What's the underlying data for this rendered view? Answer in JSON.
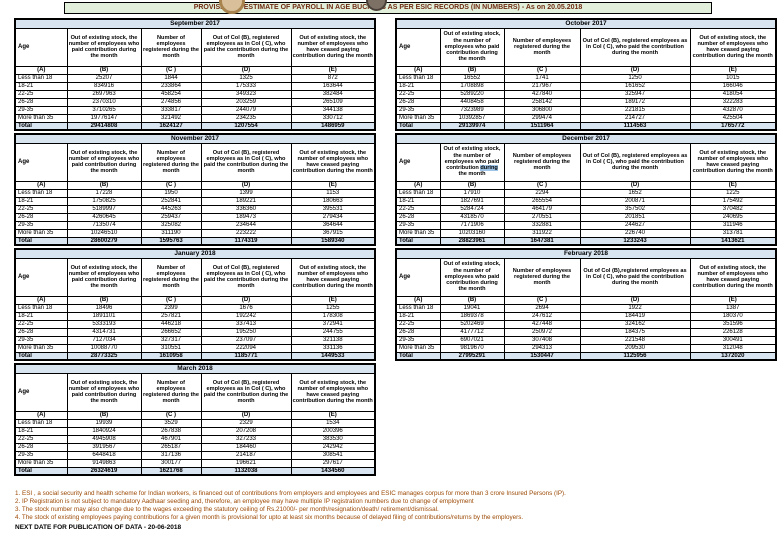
{
  "title": "PROVISIONAL ESTIMATE OF PAYROLL IN AGE BUCKETS AS PER ESIC RECORDS (IN NUMBERS) - As on 20.05.2018",
  "colors": {
    "title_band_bg": "#e2efda",
    "title_text": "#6f2c13",
    "month_band_bg": "#d9e4f1",
    "total_row_bg": "#d9e4f1",
    "notes_text": "#9c4a06",
    "selection_highlight": "#9dc3e6"
  },
  "headers": {
    "age": "Age",
    "col_b": "Out of existing stock, the number of employees who paid contribution during the month",
    "col_b_highlight_parts": {
      "before": "Out of existing stock, the number of employees who paid contribution ",
      "highlight": "during",
      "after": " the month"
    },
    "col_c": "Number of employees registered during the month",
    "col_d": "Out of Col (B), registered employees as in Col ( C), who paid the contribution during the month",
    "col_d_feb": "Out of Col (B),registered employees as in Col ( C), who paid the contribution during the month",
    "col_e": "Out of existing stock, the number of  employees  who have ceased paying contribution during the month"
  },
  "column_letters": [
    "(A)",
    "(B)",
    "(C )",
    "(D)",
    "(E)"
  ],
  "tables": [
    {
      "month": "September 2017",
      "rows": [
        [
          "Less than 18",
          "25207",
          "1844",
          "1325",
          "872"
        ],
        [
          "18-21",
          "834916",
          "233864",
          "175333",
          "163644"
        ],
        [
          "22-25",
          "2697963",
          "458254",
          "349323",
          "382484"
        ],
        [
          "26-28",
          "2370310",
          "274856",
          "203259",
          "265109"
        ],
        [
          "29-35",
          "3710265",
          "333817",
          "244079",
          "344138"
        ],
        [
          "More than 35",
          "19776147",
          "321492",
          "234235",
          "330712"
        ],
        [
          "Total",
          "29414808",
          "1624127",
          "1207554",
          "1486959"
        ]
      ]
    },
    {
      "month": "October 2017",
      "rows": [
        [
          "Less than 18",
          "16552",
          "1741",
          "1250",
          "1015"
        ],
        [
          "18-21",
          "1708898",
          "217967",
          "161652",
          "166046"
        ],
        [
          "22-25",
          "5289220",
          "427840",
          "325947",
          "418054"
        ],
        [
          "26-28",
          "4408458",
          "258142",
          "189172",
          "322283"
        ],
        [
          "29-35",
          "7323989",
          "306800",
          "221815",
          "432870"
        ],
        [
          "More than 35",
          "10392857",
          "299474",
          "214727",
          "425504"
        ],
        [
          "Total",
          "29139974",
          "1511964",
          "1114563",
          "1765772"
        ]
      ]
    },
    {
      "month": "November 2017",
      "rows": [
        [
          "Less than 18",
          "17228",
          "1950",
          "1399",
          "1153"
        ],
        [
          "18-21",
          "1750825",
          "252841",
          "189221",
          "180663"
        ],
        [
          "22-25",
          "5189997",
          "445263",
          "336360",
          "395531"
        ],
        [
          "26-28",
          "4260645",
          "259437",
          "189473",
          "279434"
        ],
        [
          "29-35",
          "7135074",
          "325082",
          "234644",
          "364644"
        ],
        [
          "More than 35",
          "10246510",
          "311190",
          "223222",
          "367915"
        ],
        [
          "Total",
          "28600279",
          "1595763",
          "1174319",
          "1589340"
        ]
      ]
    },
    {
      "month": "December 2017",
      "b_highlight": true,
      "rows": [
        [
          "Less than 18",
          "17910",
          "2294",
          "1652",
          "1225"
        ],
        [
          "18-21",
          "1827691",
          "265554",
          "200871",
          "175492"
        ],
        [
          "22-25",
          "5284724",
          "464179",
          "357502",
          "370482"
        ],
        [
          "26-28",
          "4318570",
          "270551",
          "201851",
          "240695"
        ],
        [
          "29-35",
          "7171906",
          "332881",
          "244627",
          "311946"
        ],
        [
          "More than 35",
          "10203160",
          "311922",
          "226740",
          "313781"
        ],
        [
          "Total",
          "28823961",
          "1647381",
          "1233243",
          "1413621"
        ]
      ]
    },
    {
      "month": "January 2018",
      "rows": [
        [
          "Less than 18",
          "18496",
          "2399",
          "1676",
          "1255"
        ],
        [
          "18-21",
          "1891101",
          "257821",
          "192242",
          "178308"
        ],
        [
          "22-25",
          "5333193",
          "446218",
          "337413",
          "372941"
        ],
        [
          "26-28",
          "4314731",
          "266652",
          "195250",
          "244755"
        ],
        [
          "29-35",
          "7127034",
          "327317",
          "237097",
          "321138"
        ],
        [
          "More than 35",
          "10088770",
          "310551",
          "222094",
          "331136"
        ],
        [
          "Total",
          "28773325",
          "1610958",
          "1185771",
          "1449533"
        ]
      ]
    },
    {
      "month": "February 2018",
      "d_key": "col_d_feb",
      "rows": [
        [
          "Less than 18",
          "19041",
          "2694",
          "1922",
          "1387"
        ],
        [
          "18-21",
          "1869378",
          "247612",
          "184419",
          "180370"
        ],
        [
          "22-25",
          "5202469",
          "427448",
          "324162",
          "351596"
        ],
        [
          "26-28",
          "4177712",
          "250972",
          "184375",
          "226128"
        ],
        [
          "29-35",
          "6907021",
          "307408",
          "221548",
          "300491"
        ],
        [
          "More than 35",
          "9819670",
          "294313",
          "209530",
          "312048"
        ],
        [
          "Total",
          "27995291",
          "1530447",
          "1125956",
          "1372020"
        ]
      ]
    },
    {
      "month": "March 2018",
      "rows": [
        [
          "Less than 18",
          "19939",
          "3529",
          "2329",
          "1534"
        ],
        [
          "18-21",
          "1840924",
          "267838",
          "207208",
          "200396"
        ],
        [
          "22-25",
          "4945908",
          "467901",
          "327233",
          "383530"
        ],
        [
          "26-28",
          "3919567",
          "265187",
          "184460",
          "242942"
        ],
        [
          "29-35",
          "6448418",
          "317136",
          "214187",
          "308541"
        ],
        [
          "More than 35",
          "9149863",
          "300177",
          "196621",
          "297617"
        ],
        [
          "Total",
          "26324619",
          "1621768",
          "1132038",
          "1434560"
        ]
      ]
    }
  ],
  "notes": [
    "1. ESI , a social security and health scheme for Indian workers, is financed out of contributions from employers and employees and ESIC manages corpus for more than 3 crore Insured Persons (IP).",
    "2. IP Registration is not subject to mandatory Aadhaar seeding and, therefore, an employee may have multiple IP registration numbers due to change of employment",
    "3. The stock number may also change due to the wages exceeding the statutory ceiling of Rs.21000/- per month/resignation/death/ retirement/dismissal.",
    "4. The stock of existing employees paying contributions for a given month is provisional for upto at least six months because of delayed filing of contributions/returns by the employers."
  ],
  "next_date": "NEXT DATE FOR PUBLICATION OF DATA - 20-06-2018"
}
